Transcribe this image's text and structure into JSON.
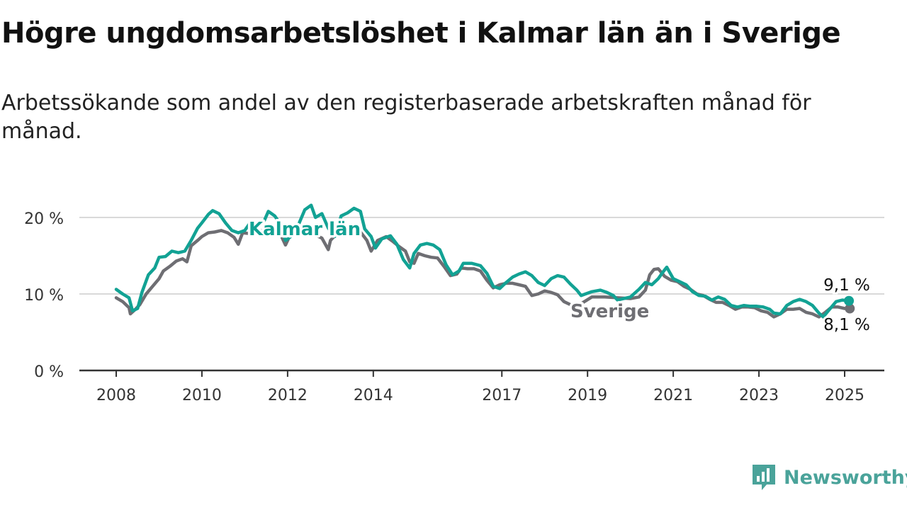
{
  "title": "Högre ungdomsarbetslöshet i Kalmar län än i Sverige",
  "subtitle": "Arbetssökande som andel av den registerbaserade arbetskraften månad för månad.",
  "brand": {
    "name": "Newsworthy"
  },
  "colors": {
    "kalmar": "#12a294",
    "sverige": "#6e6e73",
    "brand": "#4aa39a",
    "grid": "#d9d9d9",
    "axis": "#333333"
  },
  "chart_data": {
    "type": "line",
    "xlim": [
      2008,
      2025.5
    ],
    "ylim": [
      0,
      20
    ],
    "y_ticks": [
      0,
      10,
      20
    ],
    "y_tick_labels": [
      "0 %",
      "10 %",
      "20 %"
    ],
    "x_ticks": [
      2008,
      2010,
      2012,
      2014,
      2017,
      2019,
      2021,
      2023,
      2025
    ],
    "x_tick_labels": [
      "2008",
      "2010",
      "2012",
      "2014",
      "2017",
      "2019",
      "2021",
      "2023",
      "2025"
    ],
    "grid": true,
    "series": [
      {
        "name": "Sverige",
        "label_at": [
          2018.6,
          7.8
        ],
        "end_label": "8,1 %",
        "end_value": 8.1,
        "points": [
          [
            2008.0,
            9.5
          ],
          [
            2008.15,
            9.0
          ],
          [
            2008.3,
            8.2
          ],
          [
            2008.33,
            7.4
          ],
          [
            2008.45,
            8.0
          ],
          [
            2008.55,
            8.6
          ],
          [
            2008.7,
            10.0
          ],
          [
            2008.85,
            11.0
          ],
          [
            2009.0,
            12.0
          ],
          [
            2009.1,
            13.0
          ],
          [
            2009.25,
            13.6
          ],
          [
            2009.4,
            14.3
          ],
          [
            2009.55,
            14.6
          ],
          [
            2009.65,
            14.2
          ],
          [
            2009.75,
            16.3
          ],
          [
            2009.9,
            17.0
          ],
          [
            2010.0,
            17.5
          ],
          [
            2010.15,
            18.0
          ],
          [
            2010.3,
            18.1
          ],
          [
            2010.45,
            18.3
          ],
          [
            2010.6,
            18.0
          ],
          [
            2010.75,
            17.4
          ],
          [
            2010.85,
            16.5
          ],
          [
            2010.95,
            18.0
          ],
          [
            2011.1,
            17.9
          ],
          [
            2011.25,
            18.6
          ],
          [
            2011.4,
            18.2
          ],
          [
            2011.55,
            18.8
          ],
          [
            2011.7,
            18.5
          ],
          [
            2011.85,
            17.6
          ],
          [
            2011.95,
            16.4
          ],
          [
            2012.05,
            17.6
          ],
          [
            2012.2,
            18.6
          ],
          [
            2012.35,
            18.8
          ],
          [
            2012.5,
            19.0
          ],
          [
            2012.65,
            17.7
          ],
          [
            2012.8,
            17.3
          ],
          [
            2012.95,
            15.8
          ],
          [
            2013.0,
            17.0
          ],
          [
            2013.2,
            18.2
          ],
          [
            2013.4,
            18.6
          ],
          [
            2013.55,
            18.9
          ],
          [
            2013.7,
            18.1
          ],
          [
            2013.85,
            17.0
          ],
          [
            2013.95,
            15.6
          ],
          [
            2014.1,
            17.0
          ],
          [
            2014.3,
            17.5
          ],
          [
            2014.45,
            16.9
          ],
          [
            2014.6,
            16.2
          ],
          [
            2014.75,
            15.6
          ],
          [
            2014.85,
            14.2
          ],
          [
            2014.95,
            14.0
          ],
          [
            2015.05,
            15.3
          ],
          [
            2015.2,
            15.0
          ],
          [
            2015.35,
            14.8
          ],
          [
            2015.5,
            14.7
          ],
          [
            2015.65,
            13.6
          ],
          [
            2015.8,
            12.4
          ],
          [
            2015.95,
            12.6
          ],
          [
            2016.05,
            13.4
          ],
          [
            2016.2,
            13.3
          ],
          [
            2016.35,
            13.3
          ],
          [
            2016.5,
            13.0
          ],
          [
            2016.65,
            11.8
          ],
          [
            2016.8,
            10.8
          ],
          [
            2016.95,
            11.2
          ],
          [
            2017.1,
            11.4
          ],
          [
            2017.25,
            11.4
          ],
          [
            2017.4,
            11.2
          ],
          [
            2017.55,
            11.0
          ],
          [
            2017.7,
            9.8
          ],
          [
            2017.85,
            10.0
          ],
          [
            2018.0,
            10.4
          ],
          [
            2018.15,
            10.2
          ],
          [
            2018.3,
            9.9
          ],
          [
            2018.45,
            9.0
          ],
          [
            2018.6,
            8.6
          ],
          [
            2018.7,
            8.2
          ],
          [
            2019.1,
            9.6
          ],
          [
            2019.4,
            9.6
          ],
          [
            2020.0,
            9.4
          ],
          [
            2020.2,
            9.6
          ],
          [
            2020.35,
            10.5
          ],
          [
            2020.45,
            12.5
          ],
          [
            2020.55,
            13.2
          ],
          [
            2020.65,
            13.3
          ],
          [
            2020.8,
            12.3
          ],
          [
            2020.95,
            11.8
          ],
          [
            2021.1,
            11.6
          ],
          [
            2021.25,
            11.0
          ],
          [
            2021.4,
            10.6
          ],
          [
            2021.55,
            10.0
          ],
          [
            2021.7,
            9.8
          ],
          [
            2021.85,
            9.3
          ],
          [
            2022.0,
            8.9
          ],
          [
            2022.15,
            8.9
          ],
          [
            2022.3,
            8.5
          ],
          [
            2022.45,
            8.0
          ],
          [
            2022.6,
            8.3
          ],
          [
            2022.75,
            8.3
          ],
          [
            2022.9,
            8.2
          ],
          [
            2023.05,
            7.8
          ],
          [
            2023.2,
            7.6
          ],
          [
            2023.35,
            7.0
          ],
          [
            2023.5,
            7.4
          ],
          [
            2023.65,
            8.0
          ],
          [
            2023.8,
            8.0
          ],
          [
            2023.95,
            8.1
          ],
          [
            2024.1,
            7.6
          ],
          [
            2024.25,
            7.4
          ],
          [
            2024.4,
            7.0
          ],
          [
            2024.55,
            7.6
          ],
          [
            2024.7,
            8.3
          ],
          [
            2024.85,
            8.3
          ],
          [
            2025.0,
            8.1
          ],
          [
            2025.12,
            8.1
          ]
        ]
      },
      {
        "name": "Kalmar län",
        "label_at": [
          2012.4,
          18.5
        ],
        "end_label": "9,1 %",
        "end_value": 9.1,
        "points": [
          [
            2008.0,
            10.6
          ],
          [
            2008.15,
            10.0
          ],
          [
            2008.3,
            9.5
          ],
          [
            2008.38,
            7.8
          ],
          [
            2008.5,
            8.1
          ],
          [
            2008.6,
            10.2
          ],
          [
            2008.75,
            12.5
          ],
          [
            2008.9,
            13.4
          ],
          [
            2009.0,
            14.8
          ],
          [
            2009.15,
            14.9
          ],
          [
            2009.3,
            15.6
          ],
          [
            2009.45,
            15.4
          ],
          [
            2009.6,
            15.6
          ],
          [
            2009.75,
            17.0
          ],
          [
            2009.9,
            18.6
          ],
          [
            2010.0,
            19.3
          ],
          [
            2010.15,
            20.4
          ],
          [
            2010.25,
            20.9
          ],
          [
            2010.4,
            20.5
          ],
          [
            2010.55,
            19.3
          ],
          [
            2010.7,
            18.3
          ],
          [
            2010.85,
            18.0
          ],
          [
            2011.0,
            18.3
          ],
          [
            2011.15,
            19.5
          ],
          [
            2011.3,
            19.0
          ],
          [
            2011.45,
            19.5
          ],
          [
            2011.55,
            20.8
          ],
          [
            2011.7,
            20.2
          ],
          [
            2011.85,
            19.0
          ],
          [
            2011.95,
            17.0
          ],
          [
            2012.1,
            17.6
          ],
          [
            2012.25,
            19.0
          ],
          [
            2012.4,
            21.0
          ],
          [
            2012.55,
            21.6
          ],
          [
            2012.65,
            20.0
          ],
          [
            2012.8,
            20.5
          ],
          [
            2012.95,
            18.6
          ],
          [
            2013.1,
            17.5
          ],
          [
            2013.25,
            20.2
          ],
          [
            2013.4,
            20.6
          ],
          [
            2013.55,
            21.2
          ],
          [
            2013.7,
            20.8
          ],
          [
            2013.8,
            18.5
          ],
          [
            2013.95,
            17.5
          ],
          [
            2014.05,
            16.0
          ],
          [
            2014.2,
            17.2
          ],
          [
            2014.4,
            17.6
          ],
          [
            2014.55,
            16.5
          ],
          [
            2014.7,
            14.5
          ],
          [
            2014.85,
            13.4
          ],
          [
            2014.95,
            15.3
          ],
          [
            2015.1,
            16.4
          ],
          [
            2015.25,
            16.6
          ],
          [
            2015.4,
            16.4
          ],
          [
            2015.55,
            15.8
          ],
          [
            2015.7,
            13.8
          ],
          [
            2015.85,
            12.5
          ],
          [
            2016.0,
            13.0
          ],
          [
            2016.1,
            14.0
          ],
          [
            2016.3,
            14.0
          ],
          [
            2016.5,
            13.7
          ],
          [
            2016.65,
            12.7
          ],
          [
            2016.8,
            11.0
          ],
          [
            2016.95,
            10.7
          ],
          [
            2017.1,
            11.5
          ],
          [
            2017.25,
            12.2
          ],
          [
            2017.4,
            12.6
          ],
          [
            2017.55,
            12.9
          ],
          [
            2017.7,
            12.4
          ],
          [
            2017.85,
            11.5
          ],
          [
            2018.0,
            11.1
          ],
          [
            2018.15,
            12.0
          ],
          [
            2018.3,
            12.4
          ],
          [
            2018.45,
            12.2
          ],
          [
            2018.6,
            11.3
          ],
          [
            2018.75,
            10.5
          ],
          [
            2018.85,
            9.8
          ],
          [
            2018.95,
            10.0
          ],
          [
            2019.1,
            10.3
          ],
          [
            2019.3,
            10.5
          ],
          [
            2019.45,
            10.2
          ],
          [
            2019.6,
            9.8
          ],
          [
            2019.7,
            9.2
          ],
          [
            2020.0,
            9.6
          ],
          [
            2020.2,
            10.6
          ],
          [
            2020.35,
            11.5
          ],
          [
            2020.5,
            11.2
          ],
          [
            2020.65,
            12.0
          ],
          [
            2020.75,
            12.8
          ],
          [
            2020.85,
            13.5
          ],
          [
            2021.0,
            12.0
          ],
          [
            2021.15,
            11.6
          ],
          [
            2021.3,
            11.2
          ],
          [
            2021.45,
            10.3
          ],
          [
            2021.6,
            9.8
          ],
          [
            2021.75,
            9.7
          ],
          [
            2021.9,
            9.2
          ],
          [
            2022.05,
            9.6
          ],
          [
            2022.2,
            9.3
          ],
          [
            2022.35,
            8.5
          ],
          [
            2022.5,
            8.3
          ],
          [
            2022.65,
            8.5
          ],
          [
            2022.8,
            8.4
          ],
          [
            2022.95,
            8.4
          ],
          [
            2023.1,
            8.3
          ],
          [
            2023.25,
            8.0
          ],
          [
            2023.35,
            7.5
          ],
          [
            2023.5,
            7.4
          ],
          [
            2023.65,
            8.5
          ],
          [
            2023.8,
            9.0
          ],
          [
            2023.95,
            9.3
          ],
          [
            2024.1,
            9.0
          ],
          [
            2024.25,
            8.5
          ],
          [
            2024.4,
            7.5
          ],
          [
            2024.5,
            7.0
          ],
          [
            2024.65,
            8.0
          ],
          [
            2024.8,
            9.0
          ],
          [
            2024.95,
            9.2
          ],
          [
            2025.1,
            9.1
          ]
        ]
      }
    ]
  }
}
